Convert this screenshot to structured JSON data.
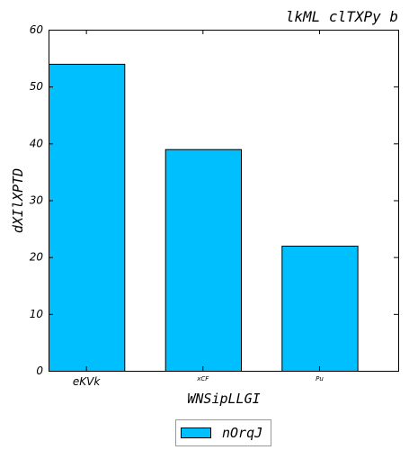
{
  "chart_data": {
    "type": "bar",
    "title": "lkML clTXPy b",
    "xlabel": "WNSipLLGI",
    "ylabel": "dXIlXPTD",
    "categories": [
      "eKVk",
      "xCF",
      "Pu"
    ],
    "series": [
      {
        "name": "nOrqJ",
        "values": [
          54,
          39,
          22
        ],
        "color": "#00BFFF"
      }
    ],
    "ylim": [
      0,
      60
    ],
    "yticks": [
      0,
      10,
      20,
      30,
      40,
      50,
      60
    ],
    "grid": false,
    "legend_position": "bottom-center"
  }
}
